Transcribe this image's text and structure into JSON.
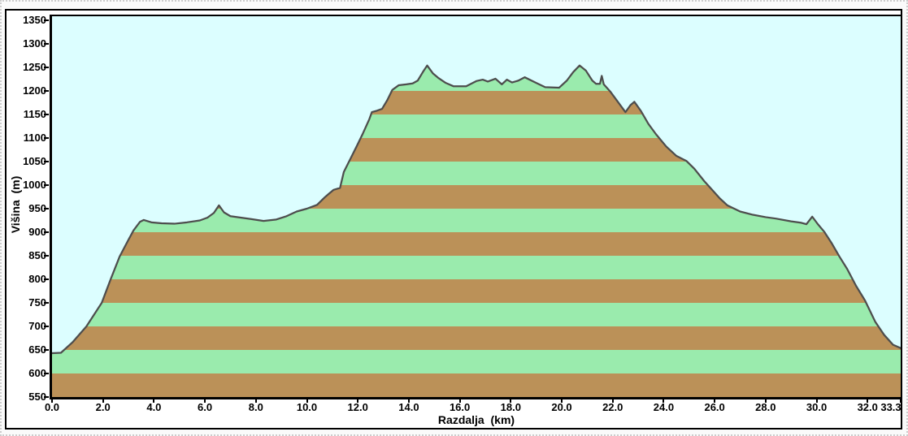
{
  "chart_data": {
    "type": "area",
    "title": "",
    "xlabel": "Razdalja  (km)",
    "ylabel": "Višina  (m)",
    "xlim": [
      0,
      33.3
    ],
    "ylim": [
      550,
      1350
    ],
    "x_tick_values": [
      0,
      2,
      4,
      6,
      8,
      10,
      12,
      14,
      16,
      18,
      20,
      22,
      24,
      26,
      28,
      30,
      32,
      33.3
    ],
    "x_tick_labels": [
      "0.0",
      "2.0",
      "4.0",
      "6.0",
      "8.0",
      "10.0",
      "12.0",
      "14.0",
      "16.0",
      "18.0",
      "20.0",
      "22.0",
      "24.0",
      "26.0",
      "28.0",
      "30.0",
      "32.0",
      "33.3"
    ],
    "y_tick_values": [
      550,
      600,
      650,
      700,
      750,
      800,
      850,
      900,
      950,
      1000,
      1050,
      1100,
      1150,
      1200,
      1250,
      1300,
      1350
    ],
    "y_tick_labels": [
      "550",
      "600",
      "650",
      "700",
      "750",
      "800",
      "850",
      "900",
      "950",
      "1000",
      "1050",
      "1100",
      "1150",
      "1200",
      "1250",
      "1300",
      "1350"
    ],
    "grid": false,
    "legend": "none",
    "stripe_band_height_m": 50,
    "colors": {
      "plot_background": "#DCFEFF",
      "stripe_brown": "#BB9158",
      "stripe_green": "#9AEBAD",
      "profile_line": "#4D4D4D",
      "axis": "#000000",
      "frame": "#000000"
    },
    "series": [
      {
        "name": "elevation-profile",
        "x_unit": "km",
        "y_unit": "m",
        "points": [
          [
            0.0,
            643
          ],
          [
            0.35,
            644
          ],
          [
            0.8,
            666
          ],
          [
            1.35,
            700
          ],
          [
            1.95,
            750
          ],
          [
            2.3,
            800
          ],
          [
            2.65,
            848
          ],
          [
            3.0,
            884
          ],
          [
            3.2,
            904
          ],
          [
            3.45,
            922
          ],
          [
            3.6,
            926
          ],
          [
            3.9,
            921
          ],
          [
            4.3,
            919
          ],
          [
            4.8,
            918
          ],
          [
            5.3,
            921
          ],
          [
            5.8,
            925
          ],
          [
            6.1,
            931
          ],
          [
            6.35,
            941
          ],
          [
            6.55,
            957
          ],
          [
            6.75,
            942
          ],
          [
            7.0,
            934
          ],
          [
            7.4,
            931
          ],
          [
            7.8,
            928
          ],
          [
            8.3,
            924
          ],
          [
            8.8,
            927
          ],
          [
            9.2,
            934
          ],
          [
            9.6,
            944
          ],
          [
            10.0,
            950
          ],
          [
            10.4,
            958
          ],
          [
            10.7,
            974
          ],
          [
            10.85,
            981
          ],
          [
            11.05,
            990
          ],
          [
            11.3,
            994
          ],
          [
            11.45,
            1028
          ],
          [
            11.7,
            1055
          ],
          [
            11.95,
            1082
          ],
          [
            12.2,
            1110
          ],
          [
            12.45,
            1140
          ],
          [
            12.55,
            1155
          ],
          [
            12.75,
            1158
          ],
          [
            12.95,
            1162
          ],
          [
            13.15,
            1180
          ],
          [
            13.35,
            1202
          ],
          [
            13.6,
            1212
          ],
          [
            13.9,
            1214
          ],
          [
            14.15,
            1216
          ],
          [
            14.35,
            1222
          ],
          [
            14.55,
            1240
          ],
          [
            14.72,
            1254
          ],
          [
            14.95,
            1237
          ],
          [
            15.15,
            1228
          ],
          [
            15.45,
            1217
          ],
          [
            15.75,
            1210
          ],
          [
            16.25,
            1210
          ],
          [
            16.65,
            1221
          ],
          [
            16.9,
            1224
          ],
          [
            17.1,
            1220
          ],
          [
            17.4,
            1226
          ],
          [
            17.65,
            1214
          ],
          [
            17.85,
            1224
          ],
          [
            18.05,
            1218
          ],
          [
            18.3,
            1222
          ],
          [
            18.55,
            1229
          ],
          [
            19.0,
            1217
          ],
          [
            19.35,
            1208
          ],
          [
            19.9,
            1207
          ],
          [
            20.2,
            1222
          ],
          [
            20.45,
            1240
          ],
          [
            20.7,
            1254
          ],
          [
            20.95,
            1243
          ],
          [
            21.2,
            1222
          ],
          [
            21.35,
            1215
          ],
          [
            21.5,
            1215
          ],
          [
            21.57,
            1232
          ],
          [
            21.65,
            1214
          ],
          [
            21.9,
            1199
          ],
          [
            22.2,
            1177
          ],
          [
            22.5,
            1155
          ],
          [
            22.7,
            1170
          ],
          [
            22.85,
            1177
          ],
          [
            23.1,
            1158
          ],
          [
            23.4,
            1130
          ],
          [
            23.7,
            1108
          ],
          [
            24.1,
            1082
          ],
          [
            24.5,
            1062
          ],
          [
            24.9,
            1051
          ],
          [
            25.2,
            1035
          ],
          [
            25.6,
            1008
          ],
          [
            25.9,
            990
          ],
          [
            26.2,
            972
          ],
          [
            26.5,
            957
          ],
          [
            27.0,
            944
          ],
          [
            27.5,
            937
          ],
          [
            28.0,
            932
          ],
          [
            28.4,
            929
          ],
          [
            29.0,
            923
          ],
          [
            29.4,
            920
          ],
          [
            29.6,
            917
          ],
          [
            29.83,
            933
          ],
          [
            30.05,
            917
          ],
          [
            30.3,
            901
          ],
          [
            30.6,
            876
          ],
          [
            30.9,
            848
          ],
          [
            31.2,
            822
          ],
          [
            31.55,
            786
          ],
          [
            31.9,
            755
          ],
          [
            32.3,
            710
          ],
          [
            32.65,
            682
          ],
          [
            33.0,
            661
          ],
          [
            33.3,
            654
          ]
        ]
      }
    ]
  }
}
